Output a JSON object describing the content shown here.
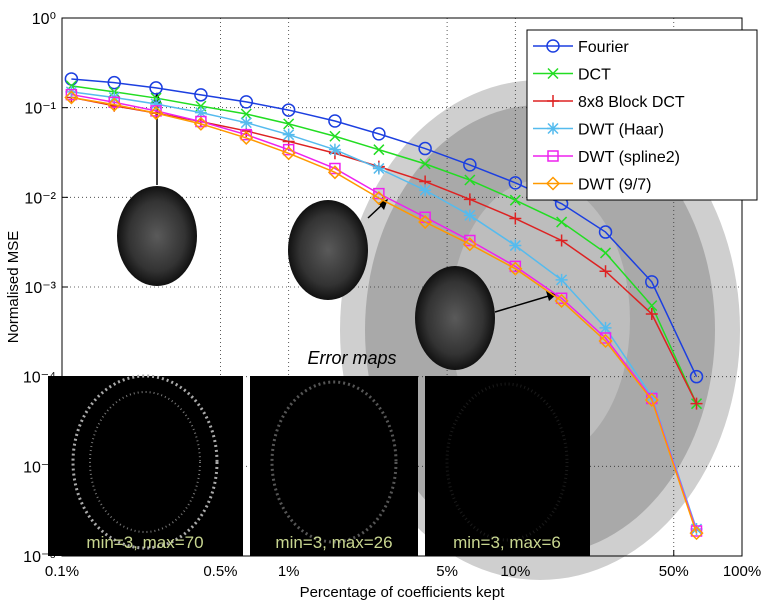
{
  "chart_data": {
    "type": "line",
    "xlabel": "Percentage of coefficients kept",
    "ylabel": "Normalised MSE",
    "log_x": true,
    "log_y": true,
    "grid": true,
    "legend": "top-right",
    "xlim": [
      0.1,
      100
    ],
    "ylim": [
      1e-06,
      1
    ],
    "xticks": [
      {
        "value": 0.1,
        "label": "0.1%"
      },
      {
        "value": 0.5,
        "label": "0.5%"
      },
      {
        "value": 1,
        "label": "1%"
      },
      {
        "value": 5,
        "label": "5%"
      },
      {
        "value": 10,
        "label": "10%"
      },
      {
        "value": 50,
        "label": "50%"
      },
      {
        "value": 100,
        "label": "100%"
      }
    ],
    "yticks": [
      {
        "value": 1,
        "label": "10⁰"
      },
      {
        "value": 0.1,
        "label": "10⁻¹"
      },
      {
        "value": 0.01,
        "label": "10⁻²"
      },
      {
        "value": 0.001,
        "label": "10⁻³"
      },
      {
        "value": 0.0001,
        "label": "10⁻⁴"
      },
      {
        "value": 1e-05,
        "label": "10⁻⁵"
      },
      {
        "value": 1e-06,
        "label": "10⁻⁶"
      }
    ],
    "x": [
      0.11,
      0.17,
      0.26,
      0.41,
      0.65,
      1.0,
      1.6,
      2.5,
      4.0,
      6.3,
      10,
      16,
      25,
      40,
      63
    ],
    "series": [
      {
        "name": "Fourier",
        "color": "#1c3fe0",
        "marker": "circle",
        "values": [
          0.209,
          0.19,
          0.166,
          0.139,
          0.116,
          0.094,
          0.071,
          0.051,
          0.035,
          0.023,
          0.0145,
          0.0085,
          0.0041,
          0.00114,
          0.0001
        ]
      },
      {
        "name": "DCT",
        "color": "#22dd22",
        "marker": "x",
        "values": [
          0.175,
          0.15,
          0.128,
          0.104,
          0.085,
          0.066,
          0.048,
          0.034,
          0.0236,
          0.0156,
          0.0093,
          0.0053,
          0.0024,
          0.00062,
          5e-05
        ]
      },
      {
        "name": "8x8 Block DCT",
        "color": "#dd2222",
        "marker": "plus",
        "values": [
          0.13,
          0.105,
          0.087,
          0.07,
          0.055,
          0.042,
          0.031,
          0.022,
          0.015,
          0.0095,
          0.0058,
          0.0033,
          0.0015,
          0.0005,
          5e-05
        ]
      },
      {
        "name": "DWT (Haar)",
        "color": "#55bbee",
        "marker": "star",
        "values": [
          0.15,
          0.13,
          0.11,
          0.088,
          0.068,
          0.05,
          0.034,
          0.021,
          0.012,
          0.0063,
          0.0029,
          0.0012,
          0.00035,
          6e-05,
          2e-06
        ]
      },
      {
        "name": "DWT (spline2)",
        "color": "#ee22ee",
        "marker": "square",
        "values": [
          0.14,
          0.115,
          0.092,
          0.07,
          0.05,
          0.034,
          0.021,
          0.011,
          0.006,
          0.0033,
          0.0017,
          0.00075,
          0.00027,
          5.7e-05,
          1.9e-06
        ]
      },
      {
        "name": "DWT (9/7)",
        "color": "#ff9900",
        "marker": "diamond",
        "values": [
          0.13,
          0.108,
          0.087,
          0.066,
          0.046,
          0.031,
          0.019,
          0.0098,
          0.0053,
          0.003,
          0.0016,
          0.0007,
          0.00025,
          5.5e-05,
          1.8e-06
        ]
      }
    ],
    "annotations": {
      "heading": "Error maps",
      "maps": [
        "min=3, max=70",
        "min=3, max=26",
        "min=3, max=6"
      ]
    }
  }
}
